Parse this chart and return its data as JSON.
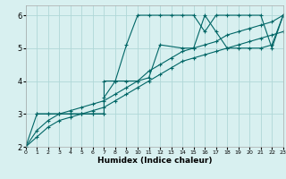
{
  "title": "",
  "xlabel": "Humidex (Indice chaleur)",
  "ylabel": "",
  "bg_color": "#d8f0f0",
  "grid_color": "#b0d8d8",
  "line_color": "#006666",
  "xlim": [
    0,
    23
  ],
  "ylim": [
    2,
    6.3
  ],
  "yticks": [
    2,
    3,
    4,
    5,
    6
  ],
  "xticks": [
    0,
    1,
    2,
    3,
    4,
    5,
    6,
    7,
    8,
    9,
    10,
    11,
    12,
    13,
    14,
    15,
    16,
    17,
    18,
    19,
    20,
    21,
    22,
    23
  ],
  "lines": [
    {
      "x": [
        0,
        1,
        2,
        3,
        4,
        5,
        6,
        7,
        7,
        8,
        9,
        10,
        11,
        12,
        13,
        14,
        15,
        16,
        17,
        18,
        19,
        20,
        21,
        22,
        23
      ],
      "y": [
        2,
        3,
        3,
        3,
        3,
        3,
        3,
        3,
        3.5,
        4,
        5.1,
        6,
        6,
        6,
        6,
        6,
        6,
        5.5,
        6,
        6,
        6,
        6,
        6,
        5,
        6
      ]
    },
    {
      "x": [
        0,
        1,
        2,
        3,
        4,
        5,
        6,
        7,
        8,
        9,
        10,
        11,
        12,
        13,
        14,
        15,
        16,
        17,
        18,
        19,
        20,
        21,
        22,
        23
      ],
      "y": [
        2,
        2.5,
        2.8,
        3.0,
        3.1,
        3.2,
        3.3,
        3.4,
        3.6,
        3.8,
        4.0,
        4.3,
        4.5,
        4.7,
        4.9,
        5.0,
        5.1,
        5.2,
        5.4,
        5.5,
        5.6,
        5.7,
        5.8,
        6.0
      ]
    },
    {
      "x": [
        0,
        1,
        2,
        3,
        4,
        5,
        6,
        7,
        8,
        9,
        10,
        11,
        12,
        13,
        14,
        15,
        16,
        17,
        18,
        19,
        20,
        21,
        22,
        23
      ],
      "y": [
        2,
        2.3,
        2.6,
        2.8,
        2.9,
        3.0,
        3.1,
        3.2,
        3.4,
        3.6,
        3.8,
        4.0,
        4.2,
        4.4,
        4.6,
        4.7,
        4.8,
        4.9,
        5.0,
        5.1,
        5.2,
        5.3,
        5.4,
        5.5
      ]
    },
    {
      "x": [
        1,
        2,
        3,
        4,
        5,
        6,
        7,
        7,
        8,
        9,
        10,
        11,
        12,
        14,
        15,
        16,
        17,
        18,
        19,
        20,
        21,
        22,
        23
      ],
      "y": [
        3,
        3,
        3,
        3,
        3,
        3,
        3,
        4,
        4,
        4,
        4,
        4.1,
        5.1,
        5.0,
        5.0,
        6,
        5.5,
        5.0,
        5.0,
        5.0,
        5.0,
        5.1,
        6
      ]
    }
  ]
}
